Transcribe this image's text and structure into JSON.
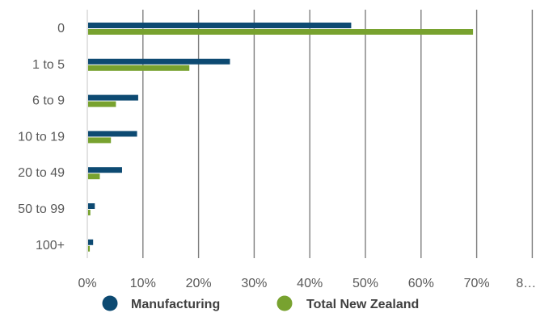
{
  "chart_data": {
    "type": "bar",
    "orientation": "horizontal",
    "categories": [
      "0",
      "1 to 5",
      "6 to 9",
      "10 to 19",
      "20 to 49",
      "50 to 99",
      "100+"
    ],
    "series": [
      {
        "name": "Manufacturing",
        "color": "#0d4a72",
        "values": [
          47.3,
          25.5,
          9.0,
          8.8,
          6.1,
          1.2,
          0.9
        ]
      },
      {
        "name": "Total New Zealand",
        "color": "#78a22f",
        "values": [
          69.2,
          18.2,
          5.0,
          4.1,
          2.1,
          0.4,
          0.3
        ]
      }
    ],
    "x_ticks": [
      "0%",
      "10%",
      "20%",
      "30%",
      "40%",
      "50%",
      "60%",
      "70%",
      "8…"
    ],
    "xlim": [
      0,
      80
    ],
    "grid": "vertical",
    "legend_position": "bottom",
    "title": "",
    "xlabel": "",
    "ylabel": ""
  }
}
